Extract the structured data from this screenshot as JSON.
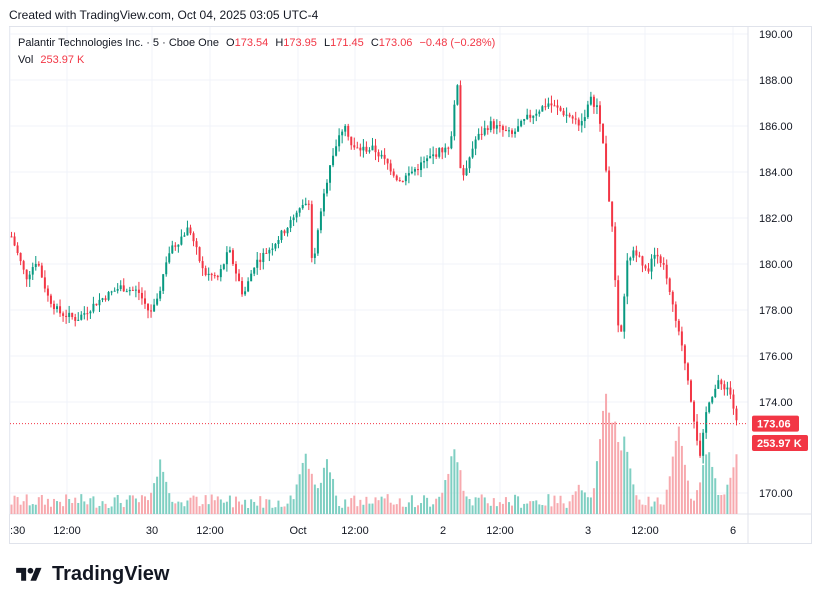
{
  "watermark": "Created with TradingView.com, Oct 04, 2025 03:05 UTC-4",
  "legend": {
    "symbol": "Palantir Technologies Inc. · 5 · Cboe One",
    "open_label": "O",
    "open": "173.54",
    "high_label": "H",
    "high": "173.95",
    "low_label": "L",
    "low": "171.45",
    "close_label": "C",
    "close": "173.06",
    "change": "−0.48 (−0.28%)",
    "vol_label": "Vol",
    "vol": "253.97 K"
  },
  "logo_text": "TradingView",
  "colors": {
    "up": "#089981",
    "down": "#f23645",
    "up_vol": "#7fcfc2",
    "down_vol": "#f7a9ae",
    "grid": "#f0f3fa"
  },
  "chart_data": {
    "type": "candlestick",
    "interval": "5",
    "price_axis": {
      "ticks": [
        "190.00",
        "188.00",
        "186.00",
        "184.00",
        "182.00",
        "180.00",
        "178.00",
        "176.00",
        "174.00",
        "170.00"
      ],
      "ylim": [
        169.0,
        190.5
      ]
    },
    "time_axis_ticks": [
      ":30",
      "12:00",
      "30",
      "12:00",
      "Oct",
      "12:00",
      "2",
      "12:00",
      "3",
      "12:00",
      "6"
    ],
    "last_price": "173.06",
    "last_volume": "253.97 K",
    "price_path": [
      {
        "t": 0,
        "p": 181.2
      },
      {
        "t": 0.02,
        "p": 179.4
      },
      {
        "t": 0.035,
        "p": 180.2
      },
      {
        "t": 0.05,
        "p": 178.6
      },
      {
        "t": 0.065,
        "p": 177.9
      },
      {
        "t": 0.09,
        "p": 177.6
      },
      {
        "t": 0.12,
        "p": 178.4
      },
      {
        "t": 0.15,
        "p": 179.0
      },
      {
        "t": 0.175,
        "p": 178.8
      },
      {
        "t": 0.19,
        "p": 177.9
      },
      {
        "t": 0.2,
        "p": 178.2
      },
      {
        "t": 0.215,
        "p": 180.4
      },
      {
        "t": 0.245,
        "p": 181.6
      },
      {
        "t": 0.265,
        "p": 179.6
      },
      {
        "t": 0.285,
        "p": 179.4
      },
      {
        "t": 0.3,
        "p": 180.6
      },
      {
        "t": 0.32,
        "p": 178.6
      },
      {
        "t": 0.335,
        "p": 180.0
      },
      {
        "t": 0.36,
        "p": 180.8
      },
      {
        "t": 0.385,
        "p": 181.8
      },
      {
        "t": 0.41,
        "p": 182.8
      },
      {
        "t": 0.415,
        "p": 179.8
      },
      {
        "t": 0.43,
        "p": 182.8
      },
      {
        "t": 0.44,
        "p": 184.5
      },
      {
        "t": 0.46,
        "p": 186.2
      },
      {
        "t": 0.47,
        "p": 185.0
      },
      {
        "t": 0.5,
        "p": 185.0
      },
      {
        "t": 0.52,
        "p": 184.3
      },
      {
        "t": 0.535,
        "p": 183.6
      },
      {
        "t": 0.56,
        "p": 184.2
      },
      {
        "t": 0.585,
        "p": 184.8
      },
      {
        "t": 0.605,
        "p": 185.2
      },
      {
        "t": 0.615,
        "p": 187.9
      },
      {
        "t": 0.62,
        "p": 183.6
      },
      {
        "t": 0.64,
        "p": 185.4
      },
      {
        "t": 0.66,
        "p": 186.1
      },
      {
        "t": 0.69,
        "p": 185.6
      },
      {
        "t": 0.71,
        "p": 186.3
      },
      {
        "t": 0.74,
        "p": 187.0
      },
      {
        "t": 0.77,
        "p": 186.4
      },
      {
        "t": 0.785,
        "p": 186.1
      },
      {
        "t": 0.8,
        "p": 187.2
      },
      {
        "t": 0.81,
        "p": 186.6
      },
      {
        "t": 0.82,
        "p": 184.2
      },
      {
        "t": 0.83,
        "p": 181.0
      },
      {
        "t": 0.835,
        "p": 177.5
      },
      {
        "t": 0.84,
        "p": 176.6
      },
      {
        "t": 0.85,
        "p": 180.3
      },
      {
        "t": 0.865,
        "p": 180.6
      },
      {
        "t": 0.875,
        "p": 179.6
      },
      {
        "t": 0.89,
        "p": 180.6
      },
      {
        "t": 0.9,
        "p": 179.8
      },
      {
        "t": 0.91,
        "p": 178.4
      },
      {
        "t": 0.92,
        "p": 177.0
      },
      {
        "t": 0.93,
        "p": 175.6
      },
      {
        "t": 0.94,
        "p": 173.6
      },
      {
        "t": 0.95,
        "p": 171.5
      },
      {
        "t": 0.96,
        "p": 174.0
      },
      {
        "t": 0.975,
        "p": 174.8
      },
      {
        "t": 0.99,
        "p": 174.6
      },
      {
        "t": 1.0,
        "p": 173.1
      }
    ],
    "volume_spikes": [
      {
        "t": 0.205,
        "v": 45
      },
      {
        "t": 0.405,
        "v": 60
      },
      {
        "t": 0.435,
        "v": 50
      },
      {
        "t": 0.61,
        "v": 64
      },
      {
        "t": 0.785,
        "v": 25
      },
      {
        "t": 0.82,
        "v": 120
      },
      {
        "t": 0.83,
        "v": 95
      },
      {
        "t": 0.845,
        "v": 70
      },
      {
        "t": 0.92,
        "v": 88
      },
      {
        "t": 0.96,
        "v": 60
      },
      {
        "t": 1.0,
        "v": 58
      }
    ]
  }
}
